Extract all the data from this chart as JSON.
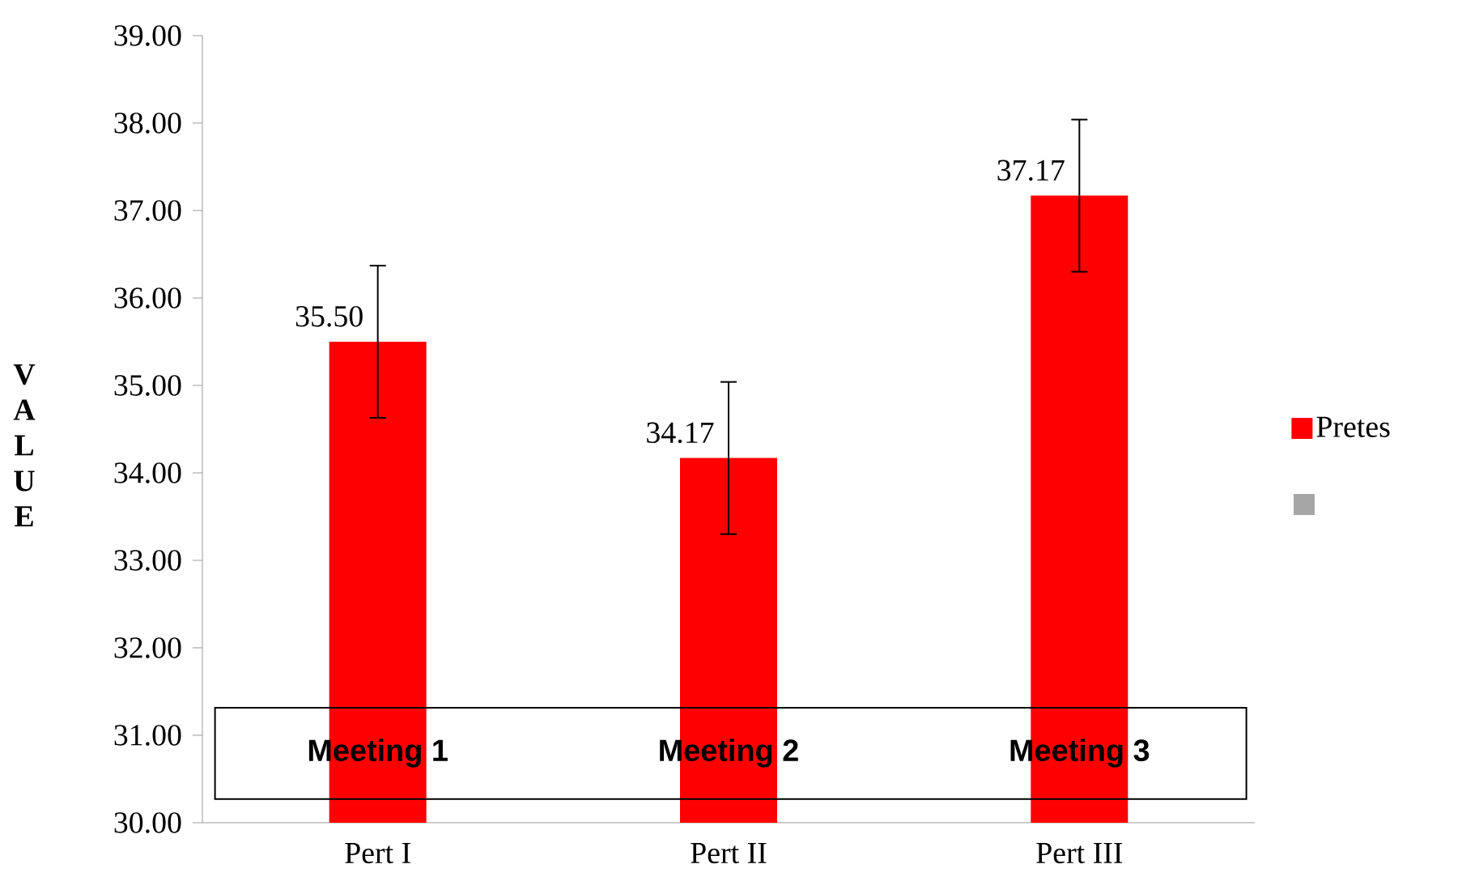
{
  "chart_data": {
    "type": "bar",
    "ylabel": "V A L U E",
    "categories": [
      "Pert I",
      "Pert II",
      "Pert III"
    ],
    "series": [
      {
        "name": "Pretes",
        "color": "#ff0000",
        "values": [
          35.5,
          34.17,
          37.17
        ],
        "errors": [
          0.87,
          0.87,
          0.87
        ],
        "value_labels": [
          "35.50",
          "34.17",
          "37.17"
        ]
      },
      {
        "color": "#a6a6a6",
        "values": [
          null,
          null,
          null
        ]
      }
    ],
    "ylim": [
      30,
      39
    ],
    "yticks": [
      {
        "value": 30,
        "label": "30.00"
      },
      {
        "value": 31,
        "label": "31.00"
      },
      {
        "value": 32,
        "label": "32.00"
      },
      {
        "value": 33,
        "label": "33.00"
      },
      {
        "value": 34,
        "label": "34.00"
      },
      {
        "value": 35,
        "label": "35.00"
      },
      {
        "value": 36,
        "label": "36.00"
      },
      {
        "value": 37,
        "label": "37.00"
      },
      {
        "value": 38,
        "label": "38.00"
      },
      {
        "value": 39,
        "label": "39.00"
      }
    ],
    "annotations": [
      "Meeting 1",
      "Meeting 2",
      "Meeting 3"
    ],
    "legend": "right",
    "grid": false
  }
}
